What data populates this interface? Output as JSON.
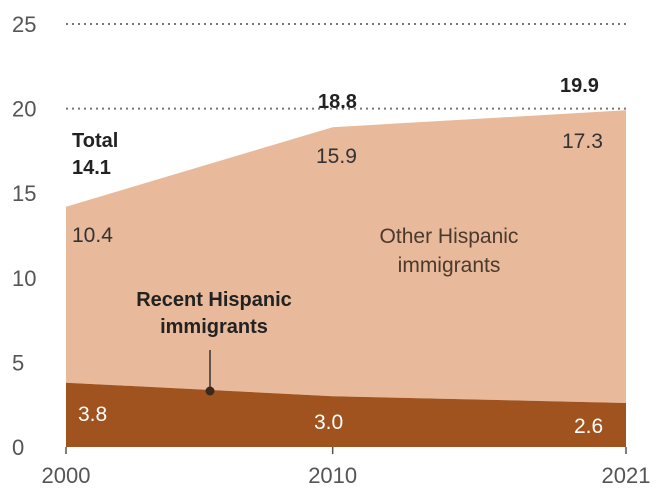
{
  "chart_data": {
    "type": "area",
    "stacked": true,
    "x": [
      2000,
      2010,
      2021
    ],
    "x_tick_labels": [
      "2000",
      "2010",
      "2021"
    ],
    "y_tick_labels": [
      "0",
      "5",
      "10",
      "15",
      "20",
      "25"
    ],
    "ylim": [
      0,
      25
    ],
    "grid": "dotted horizontal lines at tops of total",
    "series": [
      {
        "name": "Recent Hispanic immigrants",
        "values": [
          3.8,
          3.0,
          2.6
        ],
        "labels": [
          "3.8",
          "3.0",
          "2.6"
        ],
        "color": "#a0531f"
      },
      {
        "name": "Other Hispanic immigrants",
        "values": [
          10.4,
          15.9,
          17.3
        ],
        "labels": [
          "10.4",
          "15.9",
          "17.3"
        ],
        "color": "#e8b99a"
      }
    ],
    "totals": [
      14.1,
      18.8,
      19.9
    ],
    "total_labels": [
      "14.1",
      "18.8",
      "19.9"
    ],
    "total_caption": "Total",
    "recent_label_lines": [
      "Recent Hispanic",
      "immigrants"
    ],
    "other_label_lines": [
      "Other Hispanic",
      "immigrants"
    ]
  }
}
